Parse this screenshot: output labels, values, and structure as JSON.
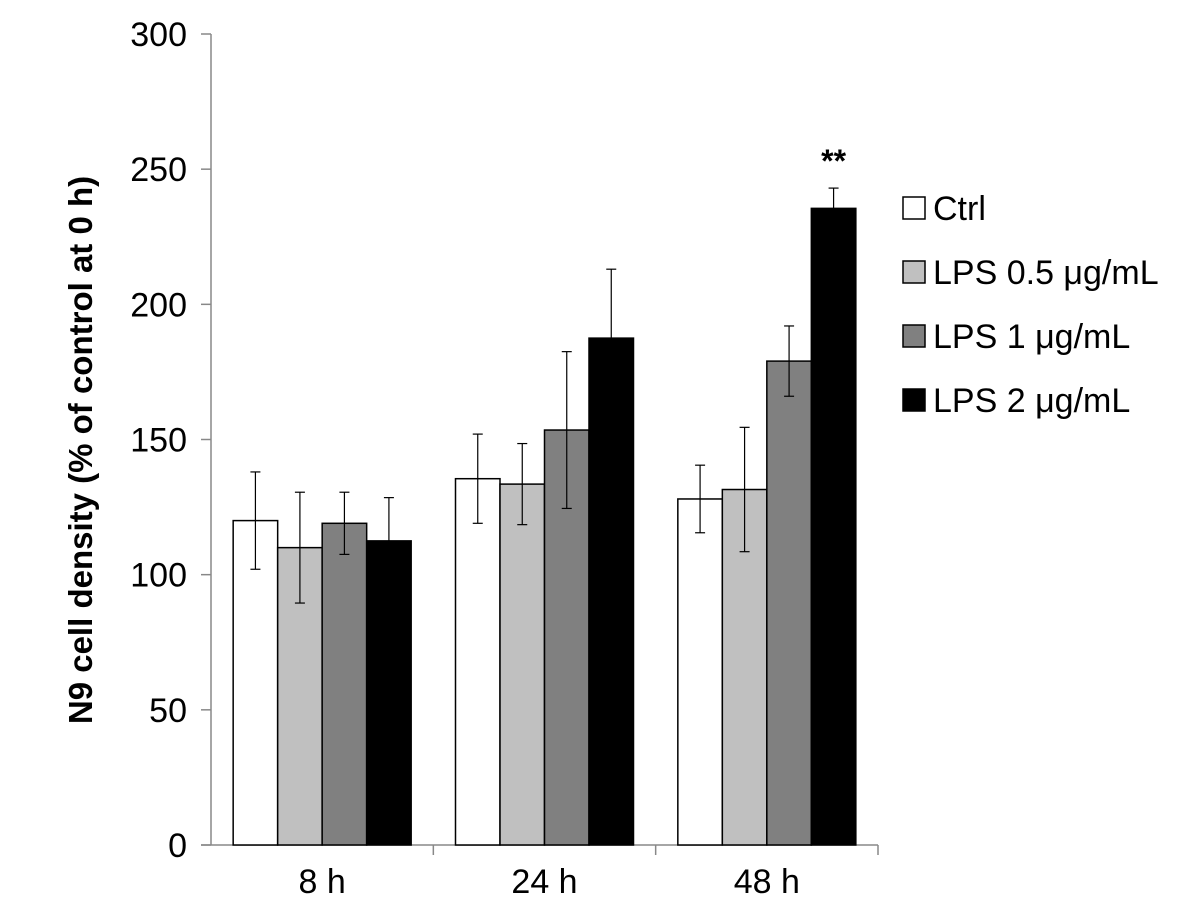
{
  "chart_data": {
    "type": "bar",
    "title": "",
    "xlabel": "",
    "ylabel": "N9 cell density (% of control at 0 h)",
    "ylim": [
      0,
      300
    ],
    "yticks": [
      0,
      50,
      100,
      150,
      200,
      250,
      300
    ],
    "grid": false,
    "legend_position": "right",
    "categories": [
      "8 h",
      "24 h",
      "48 h"
    ],
    "series": [
      {
        "name": "Ctrl",
        "color": "#ffffff",
        "values": [
          120,
          135.5,
          128
        ],
        "errors": [
          18,
          16.5,
          12.5
        ]
      },
      {
        "name": "LPS 0.5 μg/mL",
        "color": "#c0c0c0",
        "values": [
          110,
          133.5,
          131.5
        ],
        "errors": [
          20.5,
          15,
          23
        ]
      },
      {
        "name": "LPS 1 μg/mL",
        "color": "#808080",
        "values": [
          119,
          153.5,
          179
        ],
        "errors": [
          11.5,
          29,
          13
        ]
      },
      {
        "name": "LPS 2 μg/mL",
        "color": "#000000",
        "values": [
          112.5,
          187.5,
          235.5
        ],
        "errors": [
          16,
          25.5,
          7.5
        ]
      }
    ],
    "annotations": [
      {
        "text": "**",
        "category": "48 h",
        "series": "LPS 2 μg/mL"
      }
    ]
  }
}
